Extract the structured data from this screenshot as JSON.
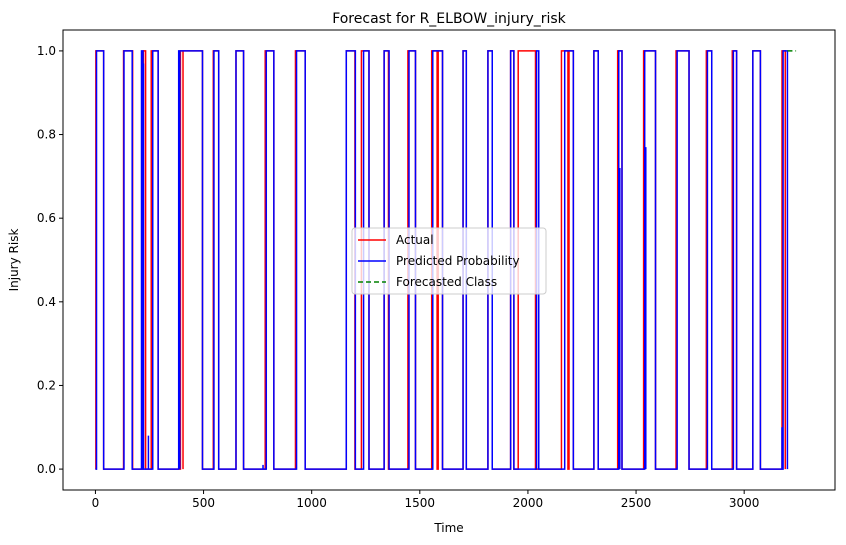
{
  "chart_data": {
    "type": "line",
    "title": "Forecast for R_ELBOW_injury_risk",
    "xlabel": "Time",
    "ylabel": "Injury Risk",
    "xlim": [
      -150,
      3420
    ],
    "ylim": [
      -0.05,
      1.05
    ],
    "x_ticks": [
      0,
      500,
      1000,
      1500,
      2000,
      2500,
      3000
    ],
    "y_ticks": [
      0.0,
      0.2,
      0.4,
      0.6,
      0.8,
      1.0
    ],
    "x_tick_labels": [
      "0",
      "500",
      "1000",
      "1500",
      "2000",
      "2500",
      "3000"
    ],
    "y_tick_labels": [
      "0.0",
      "0.2",
      "0.4",
      "0.6",
      "0.8",
      "1.0"
    ],
    "grid": false,
    "legend_position": "center",
    "series": [
      {
        "name": "Actual",
        "color": "#ff0000",
        "style": "solid",
        "pulses": [
          [
            2,
            38
          ],
          [
            130,
            172
          ],
          [
            222,
            232
          ],
          [
            258,
            290
          ],
          [
            393,
            405
          ],
          [
            405,
            495
          ],
          [
            545,
            570
          ],
          [
            650,
            685
          ],
          [
            785,
            825
          ],
          [
            925,
            970
          ],
          [
            1160,
            1200
          ],
          [
            1230,
            1265
          ],
          [
            1335,
            1355
          ],
          [
            1445,
            1480
          ],
          [
            1555,
            1580
          ],
          [
            1585,
            1605
          ],
          [
            1700,
            1715
          ],
          [
            1815,
            1835
          ],
          [
            1920,
            1935
          ],
          [
            2035,
            1955
          ],
          [
            2155,
            2190
          ],
          [
            2185,
            2210
          ],
          [
            2305,
            2325
          ],
          [
            2415,
            2435
          ],
          [
            2535,
            2590
          ],
          [
            2685,
            2745
          ],
          [
            2825,
            2850
          ],
          [
            2945,
            2965
          ],
          [
            3040,
            3075
          ],
          [
            3175,
            3190
          ]
        ],
        "x_end": 3190
      },
      {
        "name": "Predicted Probability",
        "color": "#0000ff",
        "style": "solid",
        "pulses": [
          [
            5,
            38
          ],
          [
            132,
            170
          ],
          [
            213,
            220
          ],
          [
            265,
            290
          ],
          [
            385,
            390
          ],
          [
            390,
            495
          ],
          [
            548,
            570
          ],
          [
            650,
            685
          ],
          [
            790,
            825
          ],
          [
            930,
            970
          ],
          [
            1160,
            1202
          ],
          [
            1240,
            1265
          ],
          [
            1335,
            1358
          ],
          [
            1450,
            1480
          ],
          [
            1560,
            1605
          ],
          [
            1700,
            1715
          ],
          [
            1815,
            1835
          ],
          [
            1920,
            1935
          ],
          [
            2040,
            2050
          ],
          [
            2170,
            2210
          ],
          [
            2305,
            2325
          ],
          [
            2420,
            2435
          ],
          [
            2540,
            2590
          ],
          [
            2690,
            2745
          ],
          [
            2830,
            2850
          ],
          [
            2950,
            2965
          ],
          [
            3040,
            3075
          ],
          [
            3180,
            3200
          ]
        ],
        "spikes": [
          [
            222,
            0.97
          ],
          [
            245,
            0.08
          ],
          [
            775,
            0.01
          ],
          [
            2425,
            0.72
          ],
          [
            2545,
            0.77
          ],
          [
            3175,
            0.1
          ]
        ],
        "x_end": 3200
      },
      {
        "name": "Forecasted Class",
        "color": "#008000",
        "style": "dashed",
        "x": [
          3200,
          3240
        ],
        "y": [
          1.0,
          1.0
        ]
      }
    ]
  }
}
